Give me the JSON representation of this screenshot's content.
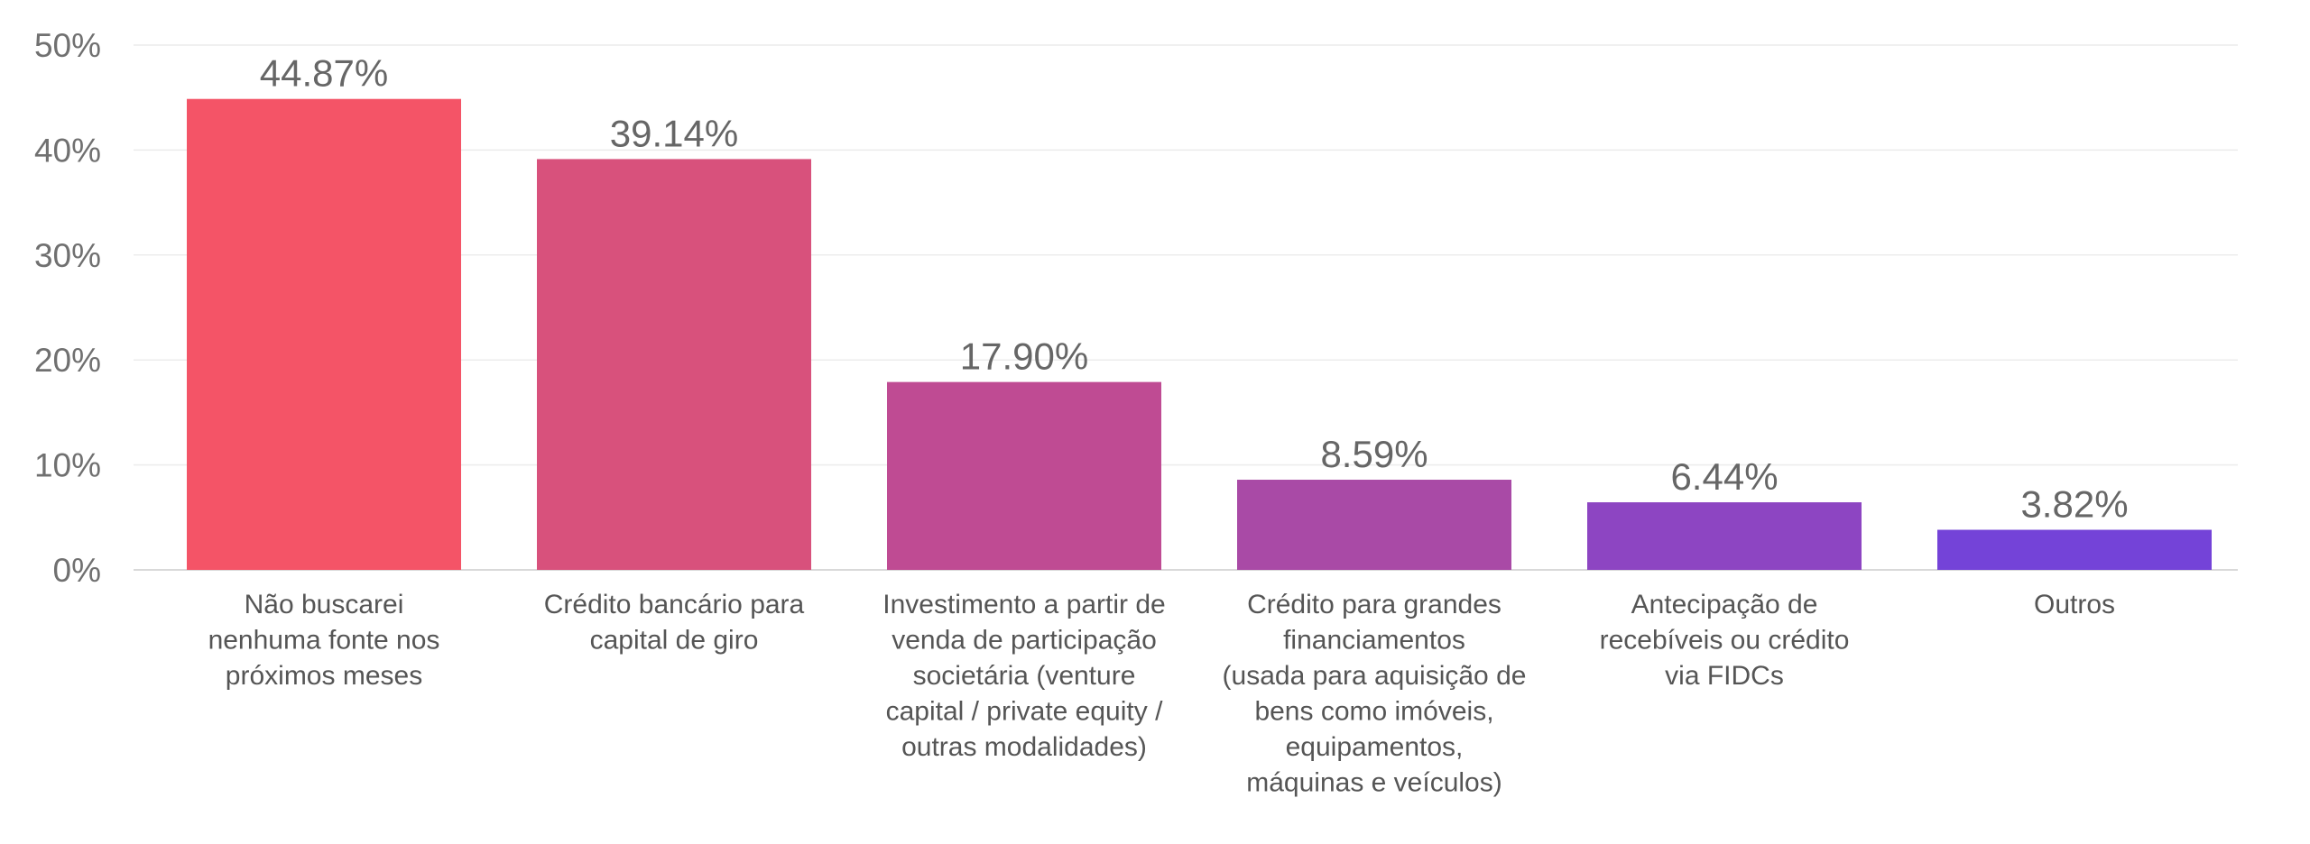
{
  "chart_data": {
    "type": "bar",
    "title": "",
    "xlabel": "",
    "ylabel": "",
    "ylim": [
      0,
      50
    ],
    "yticks": [
      0,
      10,
      20,
      30,
      40,
      50
    ],
    "ytick_labels": [
      "0%",
      "10%",
      "20%",
      "30%",
      "40%",
      "50%"
    ],
    "grid": true,
    "legend": "none",
    "categories": [
      [
        "Não buscarei",
        "nenhuma fonte nos",
        "próximos meses"
      ],
      [
        "Crédito bancário para",
        "capital de giro"
      ],
      [
        "Investimento a partir de",
        "venda de participação",
        "societária (venture",
        "capital / private equity /",
        "outras modalidades)"
      ],
      [
        "Crédito para grandes",
        "financiamentos",
        "(usada para aquisição de",
        "bens como imóveis,",
        "equipamentos,",
        "máquinas e veículos)"
      ],
      [
        "Antecipação de",
        "recebíveis ou crédito",
        "via FIDCs"
      ],
      [
        "Outros"
      ]
    ],
    "values": [
      44.87,
      39.14,
      17.9,
      8.59,
      6.44,
      3.82
    ],
    "value_labels": [
      "44.87%",
      "39.14%",
      "17.90%",
      "8.59%",
      "6.44%",
      "3.82%"
    ],
    "colors": [
      "#F45467",
      "#D8517C",
      "#BF4B93",
      "#A94AA6",
      "#8D45C2",
      "#7443D8"
    ]
  }
}
